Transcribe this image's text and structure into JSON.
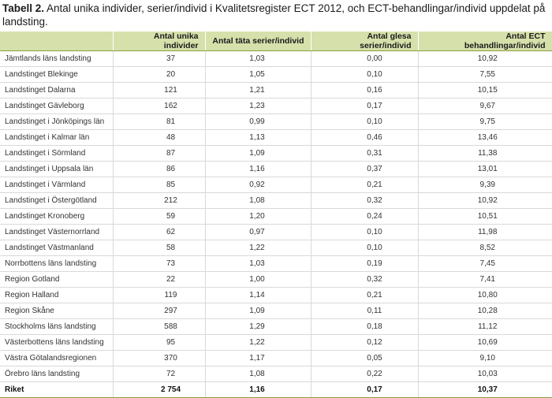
{
  "caption": {
    "label": "Tabell 2.",
    "text": " Antal unika individer, serier/individ i Kvalitetsregister ECT 2012, och ECT-behandlingar/individ uppdelat på landsting."
  },
  "table": {
    "headers": [
      "",
      "Antal unika individer",
      "Antal täta serier/individ",
      "Antal glesa serier/individ",
      "Antal ECT behandlingar/individ"
    ],
    "rows": [
      [
        "Jämtlands läns landsting",
        "37",
        "1,03",
        "0,00",
        "10,92"
      ],
      [
        "Landstinget Blekinge",
        "20",
        "1,05",
        "0,10",
        "7,55"
      ],
      [
        "Landstinget Dalarna",
        "121",
        "1,21",
        "0,16",
        "10,15"
      ],
      [
        "Landstinget Gävleborg",
        "162",
        "1,23",
        "0,17",
        "9,67"
      ],
      [
        "Landstinget i Jönköpings län",
        "81",
        "0,99",
        "0,10",
        "9,75"
      ],
      [
        "Landstinget i Kalmar län",
        "48",
        "1,13",
        "0,46",
        "13,46"
      ],
      [
        "Landstinget i Sörmland",
        "87",
        "1,09",
        "0,31",
        "11,38"
      ],
      [
        "Landstinget i Uppsala län",
        "86",
        "1,16",
        "0,37",
        "13,01"
      ],
      [
        "Landstinget i Värmland",
        "85",
        "0,92",
        "0,21",
        "9,39"
      ],
      [
        "Landstinget i Östergötland",
        "212",
        "1,08",
        "0,32",
        "10,92"
      ],
      [
        "Landstinget Kronoberg",
        "59",
        "1,20",
        "0,24",
        "10,51"
      ],
      [
        "Landstinget Västernorrland",
        "62",
        "0,97",
        "0,10",
        "11,98"
      ],
      [
        "Landstinget Västmanland",
        "58",
        "1,22",
        "0,10",
        "8,52"
      ],
      [
        "Norrbottens läns landsting",
        "73",
        "1,03",
        "0,19",
        "7,45"
      ],
      [
        "Region Gotland",
        "22",
        "1,00",
        "0,32",
        "7,41"
      ],
      [
        "Region Halland",
        "119",
        "1,14",
        "0,21",
        "10,80"
      ],
      [
        "Region Skåne",
        "297",
        "1,09",
        "0,11",
        "10,28"
      ],
      [
        "Stockholms läns landsting",
        "588",
        "1,29",
        "0,18",
        "11,12"
      ],
      [
        "Västerbottens läns landsting",
        "95",
        "1,22",
        "0,12",
        "10,69"
      ],
      [
        "Västra Götalandsregionen",
        "370",
        "1,17",
        "0,05",
        "9,10"
      ],
      [
        "Örebro läns landsting",
        "72",
        "1,08",
        "0,22",
        "10,03"
      ]
    ],
    "total": [
      "Riket",
      "2 754",
      "1,16",
      "0,17",
      "10,37"
    ]
  },
  "colors": {
    "header_bg": "#d6e0ab",
    "rule": "#8aa040"
  }
}
